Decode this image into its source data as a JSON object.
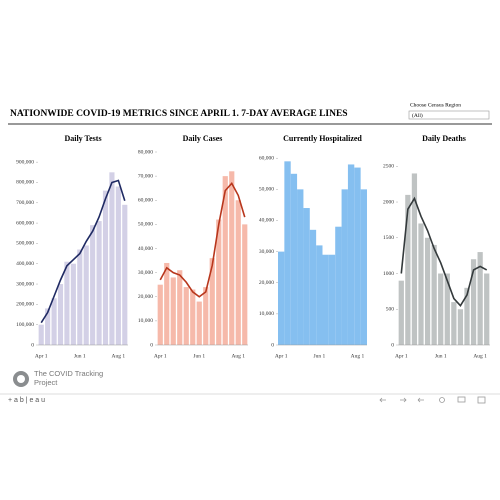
{
  "header": {
    "title": "NATIONWIDE COVID-19 METRICS SINCE APRIL 1. 7-DAY AVERAGE LINES",
    "filter_label": "Choose Census Region",
    "filter_value": "(All)"
  },
  "footer": {
    "logo": "The COVID Tracking Project",
    "brand": "+ a b | e a u"
  },
  "chart_data": [
    {
      "type": "combo",
      "title": "Daily Tests",
      "categories": [
        "Apr 1",
        null,
        null,
        null,
        null,
        null,
        "Jun 1",
        null,
        null,
        null,
        null,
        null,
        "Aug 1",
        null
      ],
      "series": [
        {
          "type": "bar",
          "color": "#d3d0e6",
          "values": [
            100000,
            180000,
            230000,
            300000,
            410000,
            400000,
            470000,
            490000,
            590000,
            610000,
            760000,
            850000,
            780000,
            690000
          ]
        },
        {
          "type": "line",
          "color": "#1f2a63",
          "values": [
            110000,
            160000,
            240000,
            320000,
            390000,
            420000,
            450000,
            510000,
            560000,
            630000,
            720000,
            800000,
            810000,
            710000
          ]
        }
      ],
      "ylim": [
        0,
        950000
      ],
      "yticks": [
        0,
        {
          "value": 100000,
          "label": "100,000"
        },
        {
          "value": 200000,
          "label": "200,000"
        },
        {
          "value": 300000,
          "label": "300,000"
        },
        {
          "value": 400000,
          "label": "400,000"
        },
        {
          "value": 500000,
          "label": "500,000"
        },
        {
          "value": 600000,
          "label": "600,000"
        },
        {
          "value": 700000,
          "label": "700,000"
        },
        {
          "value": 800000,
          "label": "800,000"
        },
        {
          "value": 900000,
          "label": "900,000"
        }
      ]
    },
    {
      "type": "combo",
      "title": "Daily Cases",
      "categories": [
        "Apr 1",
        null,
        null,
        null,
        null,
        null,
        "Jun 1",
        null,
        null,
        null,
        null,
        null,
        "Aug 1",
        null
      ],
      "series": [
        {
          "type": "bar",
          "color": "#f6b9aa",
          "values": [
            25000,
            34000,
            28000,
            31000,
            24000,
            23000,
            18000,
            24000,
            36000,
            52000,
            70000,
            72000,
            60000,
            50000
          ]
        },
        {
          "type": "line",
          "color": "#b8361c",
          "values": [
            27000,
            32000,
            30000,
            29000,
            26000,
            22000,
            20000,
            22000,
            33000,
            50000,
            64000,
            67000,
            62000,
            53000
          ]
        }
      ],
      "ylim": [
        0,
        80000
      ],
      "yticks": [
        0,
        {
          "value": 10000,
          "label": "10,000"
        },
        {
          "value": 20000,
          "label": "20,000"
        },
        {
          "value": 30000,
          "label": "30,000"
        },
        {
          "value": 40000,
          "label": "40,000"
        },
        {
          "value": 50000,
          "label": "50,000"
        },
        {
          "value": 60000,
          "label": "60,000"
        },
        {
          "value": 70000,
          "label": "70,000"
        },
        {
          "value": 80000,
          "label": "80,000"
        }
      ]
    },
    {
      "type": "bar",
      "title": "Currently Hospitalized",
      "categories": [
        "Apr 1",
        null,
        null,
        null,
        null,
        null,
        "Jun 1",
        null,
        null,
        null,
        null,
        null,
        "Aug 1",
        null
      ],
      "color": "#85bff0",
      "values": [
        30000,
        59000,
        55000,
        50000,
        44000,
        37000,
        32000,
        29000,
        29000,
        38000,
        50000,
        58000,
        57000,
        50000
      ],
      "ylim": [
        0,
        62000
      ],
      "yticks": [
        0,
        {
          "value": 10000,
          "label": "10,000"
        },
        {
          "value": 20000,
          "label": "20,000"
        },
        {
          "value": 30000,
          "label": "30,000"
        },
        {
          "value": 40000,
          "label": "40,000"
        },
        {
          "value": 50000,
          "label": "50,000"
        },
        {
          "value": 60000,
          "label": "60,000"
        }
      ]
    },
    {
      "type": "combo",
      "title": "Daily Deaths",
      "categories": [
        "Apr 1",
        null,
        null,
        null,
        null,
        null,
        "Jun 1",
        null,
        null,
        null,
        null,
        null,
        "Aug 1",
        null
      ],
      "series": [
        {
          "type": "bar",
          "color": "#bfc3c3",
          "values": [
            900,
            2100,
            2400,
            1700,
            1500,
            1400,
            1000,
            1000,
            600,
            500,
            800,
            1200,
            1300,
            1000
          ]
        },
        {
          "type": "line",
          "color": "#343a3c",
          "values": [
            1000,
            1900,
            2050,
            1800,
            1600,
            1350,
            1150,
            900,
            650,
            550,
            700,
            1050,
            1100,
            1050
          ]
        }
      ],
      "ylim": [
        0,
        2700
      ],
      "yticks": [
        0,
        500,
        1000,
        1500,
        2000,
        2500
      ]
    }
  ]
}
